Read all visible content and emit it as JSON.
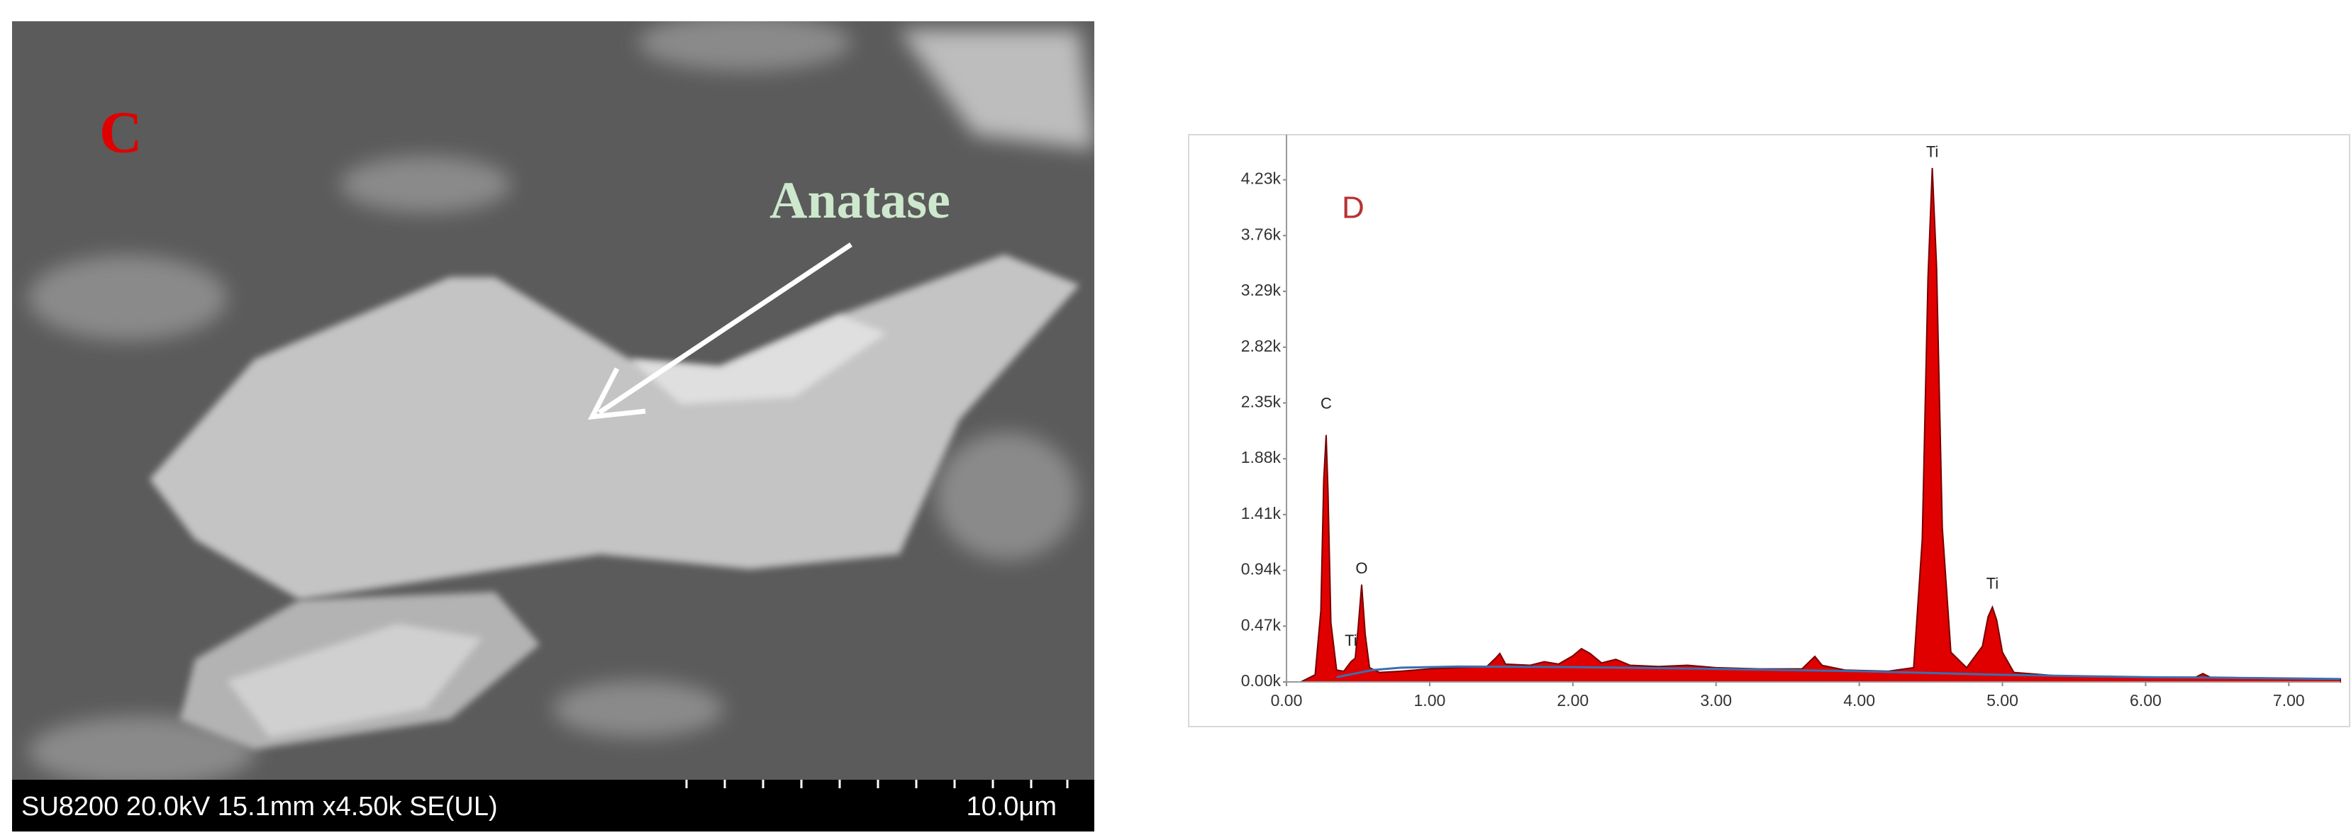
{
  "sem": {
    "panel_label": "C",
    "annotation": "Anatase",
    "info": "SU8200 20.0kV 15.1mm x4.50k SE(UL)",
    "scale": "10.0μm"
  },
  "chart_data": {
    "type": "line",
    "title": "D",
    "x": [
      -0.1,
      0.1,
      0.2,
      0.24,
      0.26,
      0.277,
      0.29,
      0.31,
      0.35,
      0.4,
      0.45,
      0.48,
      0.5,
      0.525,
      0.55,
      0.58,
      0.65,
      0.8,
      1.0,
      1.2,
      1.4,
      1.46,
      1.49,
      1.53,
      1.7,
      1.8,
      1.9,
      2.0,
      2.06,
      2.12,
      2.2,
      2.3,
      2.4,
      2.6,
      2.8,
      3.0,
      3.3,
      3.6,
      3.66,
      3.69,
      3.74,
      3.9,
      4.2,
      4.38,
      4.44,
      4.48,
      4.51,
      4.54,
      4.58,
      4.64,
      4.75,
      4.86,
      4.9,
      4.93,
      4.96,
      5.0,
      5.08,
      5.4,
      6.0,
      6.35,
      6.4,
      6.45,
      7.0,
      7.36
    ],
    "series": [
      {
        "color": "#e00000",
        "values": [
          0,
          0,
          60,
          600,
          1700,
          2080,
          1600,
          500,
          100,
          90,
          170,
          200,
          450,
          820,
          400,
          120,
          80,
          90,
          110,
          120,
          130,
          200,
          240,
          150,
          140,
          170,
          150,
          220,
          280,
          240,
          160,
          190,
          140,
          130,
          140,
          120,
          110,
          110,
          180,
          215,
          140,
          100,
          90,
          120,
          1200,
          3400,
          4330,
          3500,
          1300,
          250,
          120,
          300,
          550,
          630,
          520,
          250,
          80,
          50,
          40,
          40,
          70,
          40,
          30,
          25
        ]
      }
    ],
    "fit": {
      "color": "#3a6fb0",
      "x": [
        0.35,
        0.6,
        0.8,
        1.2,
        2.0,
        3.0,
        4.0,
        5.0,
        6.0,
        7.0,
        7.36
      ],
      "values": [
        40,
        100,
        120,
        130,
        125,
        110,
        90,
        60,
        40,
        30,
        25
      ]
    },
    "annotations": [
      {
        "text": "C",
        "x": 0.277,
        "y": 2336
      },
      {
        "text": "Ti",
        "x": 0.45,
        "y": 340
      },
      {
        "text": "O",
        "x": 0.525,
        "y": 947
      },
      {
        "text": "Ti",
        "x": 4.51,
        "y": 4457
      },
      {
        "text": "Ti",
        "x": 4.93,
        "y": 820
      }
    ],
    "xlim": [
      0,
      7.36
    ],
    "ylim": [
      0,
      4610
    ],
    "xticks": [
      {
        "value": 0,
        "label": "0.00"
      },
      {
        "value": 1,
        "label": "1.00"
      },
      {
        "value": 2,
        "label": "2.00"
      },
      {
        "value": 3,
        "label": "3.00"
      },
      {
        "value": 4,
        "label": "4.00"
      },
      {
        "value": 5,
        "label": "5.00"
      },
      {
        "value": 6,
        "label": "6.00"
      },
      {
        "value": 7,
        "label": "7.00"
      }
    ],
    "yticks": [
      {
        "value": 0,
        "label": "0.00k"
      },
      {
        "value": 470,
        "label": "0.47k"
      },
      {
        "value": 940,
        "label": "0.94k"
      },
      {
        "value": 1410,
        "label": "1.41k"
      },
      {
        "value": 1880,
        "label": "1.88k"
      },
      {
        "value": 2350,
        "label": "2.35k"
      },
      {
        "value": 2820,
        "label": "2.82k"
      },
      {
        "value": 3290,
        "label": "3.29k"
      },
      {
        "value": 3760,
        "label": "3.76k"
      },
      {
        "value": 4230,
        "label": "4.23k"
      }
    ]
  }
}
